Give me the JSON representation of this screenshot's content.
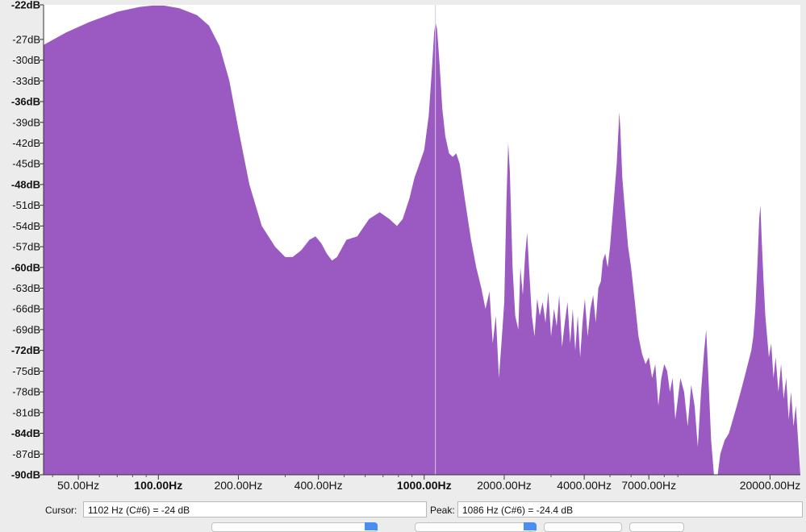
{
  "chart_data": {
    "type": "area",
    "x_scale": "log",
    "fill_color": "#9b59c2",
    "cursor_line_color": "#d8c8e4",
    "xlim": [
      37,
      26000
    ],
    "ylim": [
      -90,
      -22
    ],
    "y_ticks": [
      {
        "v": -22,
        "label": "-22dB",
        "bold": true
      },
      {
        "v": -27,
        "label": "-27dB"
      },
      {
        "v": -30,
        "label": "-30dB"
      },
      {
        "v": -33,
        "label": "-33dB"
      },
      {
        "v": -36,
        "label": "-36dB",
        "bold": true
      },
      {
        "v": -39,
        "label": "-39dB"
      },
      {
        "v": -42,
        "label": "-42dB"
      },
      {
        "v": -45,
        "label": "-45dB"
      },
      {
        "v": -48,
        "label": "-48dB",
        "bold": true
      },
      {
        "v": -51,
        "label": "-51dB"
      },
      {
        "v": -54,
        "label": "-54dB"
      },
      {
        "v": -57,
        "label": "-57dB"
      },
      {
        "v": -60,
        "label": "-60dB",
        "bold": true
      },
      {
        "v": -63,
        "label": "-63dB"
      },
      {
        "v": -66,
        "label": "-66dB"
      },
      {
        "v": -69,
        "label": "-69dB"
      },
      {
        "v": -72,
        "label": "-72dB",
        "bold": true
      },
      {
        "v": -75,
        "label": "-75dB"
      },
      {
        "v": -78,
        "label": "-78dB"
      },
      {
        "v": -81,
        "label": "-81dB"
      },
      {
        "v": -84,
        "label": "-84dB",
        "bold": true
      },
      {
        "v": -87,
        "label": "-87dB"
      },
      {
        "v": -90,
        "label": "-90dB",
        "bold": true
      }
    ],
    "x_ticks": [
      {
        "v": 50,
        "label": "50.00Hz"
      },
      {
        "v": 100,
        "label": "100.00Hz",
        "bold": true
      },
      {
        "v": 200,
        "label": "200.00Hz"
      },
      {
        "v": 400,
        "label": "400.00Hz"
      },
      {
        "v": 1000,
        "label": "1000.00Hz",
        "bold": true
      },
      {
        "v": 2000,
        "label": "2000.00Hz"
      },
      {
        "v": 4000,
        "label": "4000.00Hz"
      },
      {
        "v": 7000,
        "label": "7000.00Hz"
      },
      {
        "v": 20000,
        "label": "20000.00Hz"
      }
    ],
    "cursor_x": 1102,
    "spectrum": [
      [
        37,
        -27.8
      ],
      [
        45,
        -26
      ],
      [
        55,
        -24.5
      ],
      [
        70,
        -23
      ],
      [
        85,
        -22.3
      ],
      [
        95,
        -22.1
      ],
      [
        105,
        -22.1
      ],
      [
        120,
        -22.5
      ],
      [
        140,
        -23.5
      ],
      [
        155,
        -25
      ],
      [
        170,
        -28
      ],
      [
        185,
        -33
      ],
      [
        200,
        -40
      ],
      [
        220,
        -48
      ],
      [
        245,
        -54
      ],
      [
        275,
        -57
      ],
      [
        300,
        -58.5
      ],
      [
        320,
        -58.5
      ],
      [
        345,
        -57.5
      ],
      [
        370,
        -56
      ],
      [
        390,
        -55.5
      ],
      [
        410,
        -56.5
      ],
      [
        430,
        -58
      ],
      [
        450,
        -59
      ],
      [
        470,
        -58.5
      ],
      [
        510,
        -56
      ],
      [
        560,
        -55.5
      ],
      [
        620,
        -53
      ],
      [
        680,
        -52
      ],
      [
        740,
        -53
      ],
      [
        790,
        -54
      ],
      [
        830,
        -53
      ],
      [
        880,
        -50
      ],
      [
        920,
        -47
      ],
      [
        960,
        -45
      ],
      [
        1000,
        -43
      ],
      [
        1040,
        -38
      ],
      [
        1070,
        -31
      ],
      [
        1090,
        -26
      ],
      [
        1102,
        -24.5
      ],
      [
        1118,
        -25.5
      ],
      [
        1140,
        -30
      ],
      [
        1170,
        -37
      ],
      [
        1200,
        -41
      ],
      [
        1240,
        -43.5
      ],
      [
        1280,
        -44
      ],
      [
        1320,
        -43.5
      ],
      [
        1360,
        -45
      ],
      [
        1420,
        -50
      ],
      [
        1500,
        -56
      ],
      [
        1570,
        -60
      ],
      [
        1640,
        -63
      ],
      [
        1700,
        -66
      ],
      [
        1760,
        -63.5
      ],
      [
        1810,
        -71
      ],
      [
        1860,
        -67
      ],
      [
        1910,
        -76
      ],
      [
        1960,
        -70
      ],
      [
        2000,
        -65
      ],
      [
        2040,
        -50
      ],
      [
        2070,
        -42
      ],
      [
        2100,
        -46
      ],
      [
        2150,
        -60
      ],
      [
        2200,
        -67
      ],
      [
        2260,
        -69
      ],
      [
        2300,
        -60
      ],
      [
        2350,
        -64
      ],
      [
        2400,
        -58
      ],
      [
        2440,
        -55
      ],
      [
        2480,
        -60
      ],
      [
        2540,
        -67
      ],
      [
        2600,
        -70
      ],
      [
        2660,
        -64.5
      ],
      [
        2720,
        -67
      ],
      [
        2790,
        -65
      ],
      [
        2860,
        -68
      ],
      [
        2930,
        -63.5
      ],
      [
        3000,
        -70
      ],
      [
        3080,
        -66
      ],
      [
        3150,
        -68.5
      ],
      [
        3220,
        -64
      ],
      [
        3300,
        -71.5
      ],
      [
        3380,
        -68
      ],
      [
        3460,
        -65
      ],
      [
        3540,
        -71
      ],
      [
        3620,
        -66
      ],
      [
        3700,
        -72
      ],
      [
        3780,
        -67
      ],
      [
        3860,
        -73
      ],
      [
        3940,
        -68
      ],
      [
        4020,
        -64.5
      ],
      [
        4120,
        -70
      ],
      [
        4220,
        -66
      ],
      [
        4320,
        -64
      ],
      [
        4420,
        -68
      ],
      [
        4520,
        -63
      ],
      [
        4620,
        -62
      ],
      [
        4700,
        -59
      ],
      [
        4800,
        -58
      ],
      [
        4900,
        -60
      ],
      [
        5000,
        -57
      ],
      [
        5100,
        -53
      ],
      [
        5200,
        -49
      ],
      [
        5300,
        -45
      ],
      [
        5380,
        -40
      ],
      [
        5420,
        -37.5
      ],
      [
        5470,
        -40
      ],
      [
        5560,
        -47
      ],
      [
        5700,
        -52
      ],
      [
        5850,
        -57
      ],
      [
        6000,
        -60
      ],
      [
        6200,
        -65
      ],
      [
        6400,
        -70
      ],
      [
        6600,
        -72.5
      ],
      [
        6800,
        -74
      ],
      [
        7000,
        -73
      ],
      [
        7200,
        -76
      ],
      [
        7400,
        -74
      ],
      [
        7600,
        -80
      ],
      [
        7800,
        -76
      ],
      [
        8000,
        -74
      ],
      [
        8200,
        -75
      ],
      [
        8400,
        -78
      ],
      [
        8600,
        -76
      ],
      [
        8800,
        -82
      ],
      [
        9000,
        -79
      ],
      [
        9200,
        -76
      ],
      [
        9500,
        -78
      ],
      [
        9800,
        -83
      ],
      [
        10100,
        -77
      ],
      [
        10400,
        -80
      ],
      [
        10700,
        -86
      ],
      [
        11000,
        -78
      ],
      [
        11300,
        -72
      ],
      [
        11500,
        -69
      ],
      [
        11700,
        -75
      ],
      [
        12000,
        -85
      ],
      [
        12300,
        -90
      ],
      [
        12700,
        -90
      ],
      [
        13000,
        -87
      ],
      [
        13500,
        -85
      ],
      [
        14000,
        -84
      ],
      [
        14500,
        -82
      ],
      [
        15000,
        -80
      ],
      [
        15500,
        -78
      ],
      [
        16000,
        -76
      ],
      [
        16500,
        -74
      ],
      [
        17000,
        -72
      ],
      [
        17300,
        -70
      ],
      [
        17600,
        -66
      ],
      [
        17900,
        -60
      ],
      [
        18200,
        -53
      ],
      [
        18400,
        -51
      ],
      [
        18600,
        -56
      ],
      [
        18900,
        -62
      ],
      [
        19200,
        -67
      ],
      [
        19500,
        -70
      ],
      [
        19800,
        -73
      ],
      [
        20200,
        -71
      ],
      [
        20600,
        -76
      ],
      [
        21000,
        -73
      ],
      [
        21500,
        -78
      ],
      [
        22000,
        -74
      ],
      [
        22500,
        -79
      ],
      [
        23000,
        -76
      ],
      [
        23500,
        -82
      ],
      [
        24000,
        -78
      ],
      [
        24500,
        -83
      ],
      [
        25000,
        -80
      ],
      [
        25500,
        -85
      ],
      [
        26000,
        -90
      ]
    ]
  },
  "status": {
    "cursor_label": "Cursor:",
    "cursor_value": "1102 Hz (C#6) = -24 dB",
    "peak_label": "Peak:",
    "peak_value": "1086 Hz (C#6) = -24.4 dB"
  }
}
